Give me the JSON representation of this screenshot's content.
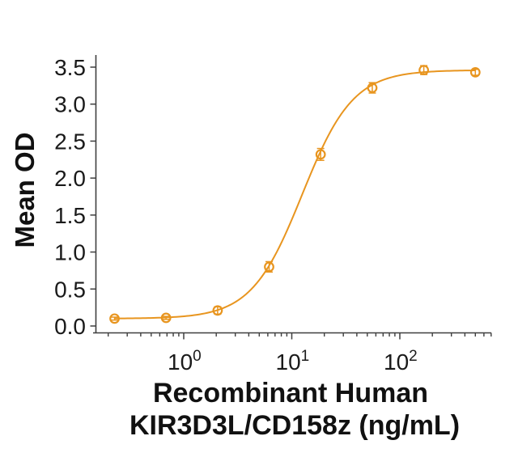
{
  "figure": {
    "kind": "elisa-dose-response-figure",
    "background": "#ffffff"
  },
  "chart_data": {
    "type": "scatter",
    "subtype": "sigmoidal-dose-response-with-fit-line",
    "title": "",
    "xlabel_line1": "Recombinant Human",
    "xlabel_line2": "KIR3D3L/CD158z (ng/mL)",
    "ylabel": "Mean OD",
    "x_scale": "log10",
    "x_range": [
      0.155,
      700
    ],
    "ylim": [
      0,
      3.5
    ],
    "grid": false,
    "legend": false,
    "colors": {
      "series": "#E8951F",
      "axis": "#3f3f3f",
      "text": "#1a1a1a"
    },
    "y_ticks": [
      {
        "value": 0.0,
        "label": "0.0"
      },
      {
        "value": 0.5,
        "label": "0.5"
      },
      {
        "value": 1.0,
        "label": "1.0"
      },
      {
        "value": 1.5,
        "label": "1.5"
      },
      {
        "value": 2.0,
        "label": "2.0"
      },
      {
        "value": 2.5,
        "label": "2.5"
      },
      {
        "value": 3.0,
        "label": "3.0"
      },
      {
        "value": 3.5,
        "label": "3.5"
      }
    ],
    "x_major_ticks": [
      {
        "value": 1,
        "base": "10",
        "exponent": "0"
      },
      {
        "value": 10,
        "base": "10",
        "exponent": "1"
      },
      {
        "value": 100,
        "base": "10",
        "exponent": "2"
      }
    ],
    "series": [
      {
        "name": "Recombinant Human KIR3D3L/CD158z",
        "marker": "open-circle",
        "x": [
          0.229,
          0.686,
          2.06,
          6.17,
          18.5,
          55.6,
          166.7,
          500
        ],
        "y": [
          0.1,
          0.11,
          0.21,
          0.8,
          2.32,
          3.22,
          3.46,
          3.43
        ],
        "yerr": [
          0.02,
          0.02,
          0.05,
          0.07,
          0.08,
          0.07,
          0.06,
          0.04
        ]
      }
    ],
    "fit": {
      "model": "4PL",
      "bottom": 0.1,
      "top": 3.46,
      "ec50": 12.5,
      "hill": 1.85
    }
  }
}
